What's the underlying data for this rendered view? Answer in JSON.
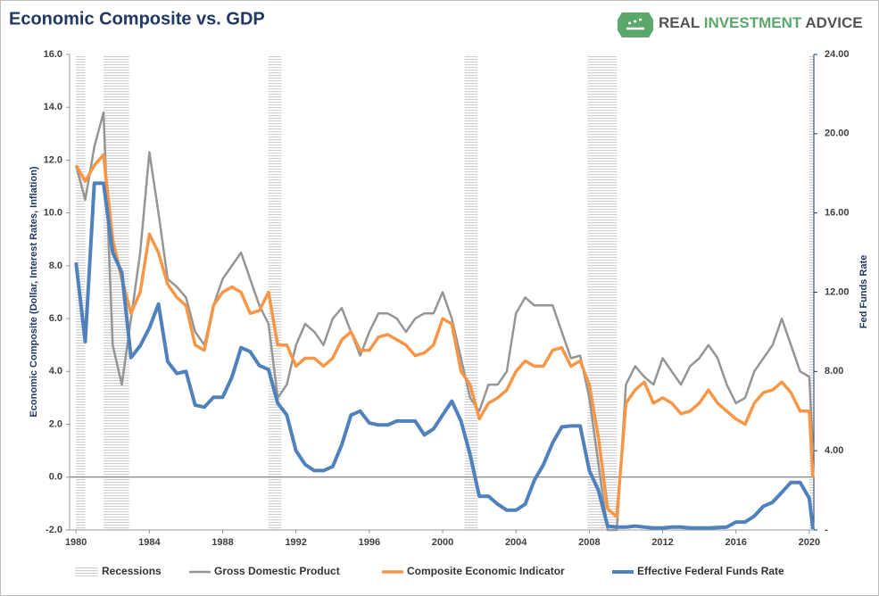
{
  "chart_data": {
    "type": "line",
    "title": "Economic Composite vs. GDP",
    "logo": [
      "REAL",
      "INVESTMENT",
      "ADVICE"
    ],
    "ylabel": "Economic Composite (Dollar, Interest Rates, Inflation)",
    "y2label": "Fed Funds Rate",
    "x": [
      1980.0,
      1980.5,
      1981.0,
      1981.5,
      1982.0,
      1982.5,
      1983.0,
      1983.5,
      1984.0,
      1984.5,
      1985.0,
      1985.5,
      1986.0,
      1986.5,
      1987.0,
      1987.5,
      1988.0,
      1988.5,
      1989.0,
      1989.5,
      1990.0,
      1990.5,
      1991.0,
      1991.5,
      1992.0,
      1992.5,
      1993.0,
      1993.5,
      1994.0,
      1994.5,
      1995.0,
      1995.5,
      1996.0,
      1996.5,
      1997.0,
      1997.5,
      1998.0,
      1998.5,
      1999.0,
      1999.5,
      2000.0,
      2000.5,
      2001.0,
      2001.5,
      2002.0,
      2002.5,
      2003.0,
      2003.5,
      2004.0,
      2004.5,
      2005.0,
      2005.5,
      2006.0,
      2006.5,
      2007.0,
      2007.5,
      2008.0,
      2008.5,
      2009.0,
      2009.5,
      2010.0,
      2010.5,
      2011.0,
      2011.5,
      2012.0,
      2012.5,
      2013.0,
      2013.5,
      2014.0,
      2014.5,
      2015.0,
      2015.5,
      2016.0,
      2016.5,
      2017.0,
      2017.5,
      2018.0,
      2018.5,
      2019.0,
      2019.5,
      2020.0,
      2020.2
    ],
    "xlim": [
      1979.65,
      2020.25
    ],
    "xticks": [
      1980,
      1984,
      1988,
      1992,
      1996,
      2000,
      2004,
      2008,
      2012,
      2016,
      2020
    ],
    "ylim": [
      -2,
      16
    ],
    "yticks": [
      {
        "value": -2,
        "label": "-2.0"
      },
      {
        "value": 0,
        "label": "0.0"
      },
      {
        "value": 2,
        "label": "2.0"
      },
      {
        "value": 4,
        "label": "4.0"
      },
      {
        "value": 6,
        "label": "6.0"
      },
      {
        "value": 8,
        "label": "8.0"
      },
      {
        "value": 10,
        "label": "10.0"
      },
      {
        "value": 12,
        "label": "12.0"
      },
      {
        "value": 14,
        "label": "14.0"
      },
      {
        "value": 16,
        "label": "16.0"
      }
    ],
    "y2lim": [
      0,
      24
    ],
    "y2ticks": [
      {
        "value": 0,
        "label": "-"
      },
      {
        "value": 4,
        "label": "4.00"
      },
      {
        "value": 8,
        "label": "8.00"
      },
      {
        "value": 12,
        "label": "12.00"
      },
      {
        "value": 16,
        "label": "16.00"
      },
      {
        "value": 20,
        "label": "20.00"
      },
      {
        "value": 24,
        "label": "24.00"
      }
    ],
    "recessions": {
      "name": "Recessions",
      "periods": [
        [
          1980.0,
          1980.5
        ],
        [
          1981.5,
          1982.9
        ],
        [
          1990.5,
          1991.2
        ],
        [
          2001.2,
          2001.9
        ],
        [
          2007.9,
          2009.5
        ],
        [
          2020.0,
          2020.25
        ]
      ]
    },
    "series": [
      {
        "name": "Gross Domestic Product",
        "color": "#959595",
        "width": 2.5,
        "values": [
          11.8,
          10.5,
          12.5,
          13.8,
          5.0,
          3.5,
          6.0,
          8.5,
          12.3,
          10.0,
          7.5,
          7.2,
          6.8,
          5.5,
          5.0,
          6.5,
          7.5,
          8.0,
          8.5,
          7.5,
          6.5,
          5.8,
          3.0,
          3.5,
          5.0,
          5.8,
          5.5,
          5.0,
          6.0,
          6.4,
          5.5,
          4.6,
          5.5,
          6.2,
          6.2,
          6.0,
          5.5,
          6.0,
          6.2,
          6.2,
          7.0,
          6.0,
          4.5,
          3.0,
          2.5,
          3.5,
          3.5,
          4.0,
          6.2,
          6.8,
          6.5,
          6.5,
          6.5,
          5.5,
          4.5,
          4.6,
          3.0,
          0.5,
          -2.0,
          -2.0,
          3.5,
          4.2,
          3.8,
          3.5,
          4.5,
          4.0,
          3.5,
          4.2,
          4.5,
          5.0,
          4.5,
          3.5,
          2.8,
          3.0,
          4.0,
          4.5,
          5.0,
          6.0,
          5.0,
          4.0,
          3.8,
          1.0
        ]
      },
      {
        "name": "Composite Economic Indicator",
        "color": "#f79646",
        "width": 3.5,
        "values": [
          11.8,
          11.2,
          11.8,
          12.2,
          9.0,
          7.5,
          6.2,
          7.0,
          9.2,
          8.5,
          7.3,
          6.8,
          6.5,
          5.0,
          4.8,
          6.5,
          7.0,
          7.2,
          7.0,
          6.2,
          6.3,
          7.0,
          5.0,
          5.0,
          4.2,
          4.5,
          4.5,
          4.2,
          4.5,
          5.2,
          5.5,
          4.8,
          4.8,
          5.3,
          5.4,
          5.2,
          5.0,
          4.6,
          4.7,
          5.0,
          6.0,
          5.8,
          4.0,
          3.5,
          2.2,
          2.8,
          3.0,
          3.3,
          4.0,
          4.4,
          4.2,
          4.2,
          4.8,
          4.9,
          4.2,
          4.4,
          3.5,
          1.5,
          -1.2,
          -1.5,
          2.8,
          3.3,
          3.6,
          2.8,
          3.0,
          2.8,
          2.4,
          2.5,
          2.8,
          3.3,
          2.8,
          2.5,
          2.2,
          2.0,
          2.8,
          3.2,
          3.3,
          3.6,
          3.2,
          2.5,
          2.5,
          0.0
        ]
      },
      {
        "name": "Effective Federal Funds Rate",
        "color": "#4f81bd",
        "width": 4,
        "axis": "y2",
        "values": [
          13.5,
          9.5,
          17.5,
          17.5,
          14.0,
          13.0,
          8.7,
          9.3,
          10.2,
          11.4,
          8.5,
          7.9,
          8.0,
          6.3,
          6.2,
          6.7,
          6.7,
          7.7,
          9.2,
          9.0,
          8.3,
          8.1,
          6.4,
          5.8,
          4.0,
          3.3,
          3.0,
          3.0,
          3.2,
          4.3,
          5.8,
          6.0,
          5.4,
          5.3,
          5.3,
          5.5,
          5.5,
          5.5,
          4.8,
          5.1,
          5.8,
          6.5,
          5.5,
          3.8,
          1.7,
          1.7,
          1.3,
          1.0,
          1.0,
          1.3,
          2.5,
          3.3,
          4.4,
          5.2,
          5.25,
          5.25,
          3.0,
          2.0,
          0.2,
          0.15,
          0.15,
          0.2,
          0.15,
          0.1,
          0.1,
          0.15,
          0.15,
          0.1,
          0.1,
          0.1,
          0.12,
          0.15,
          0.4,
          0.4,
          0.7,
          1.2,
          1.4,
          1.9,
          2.4,
          2.4,
          1.6,
          0.05
        ]
      }
    ]
  }
}
